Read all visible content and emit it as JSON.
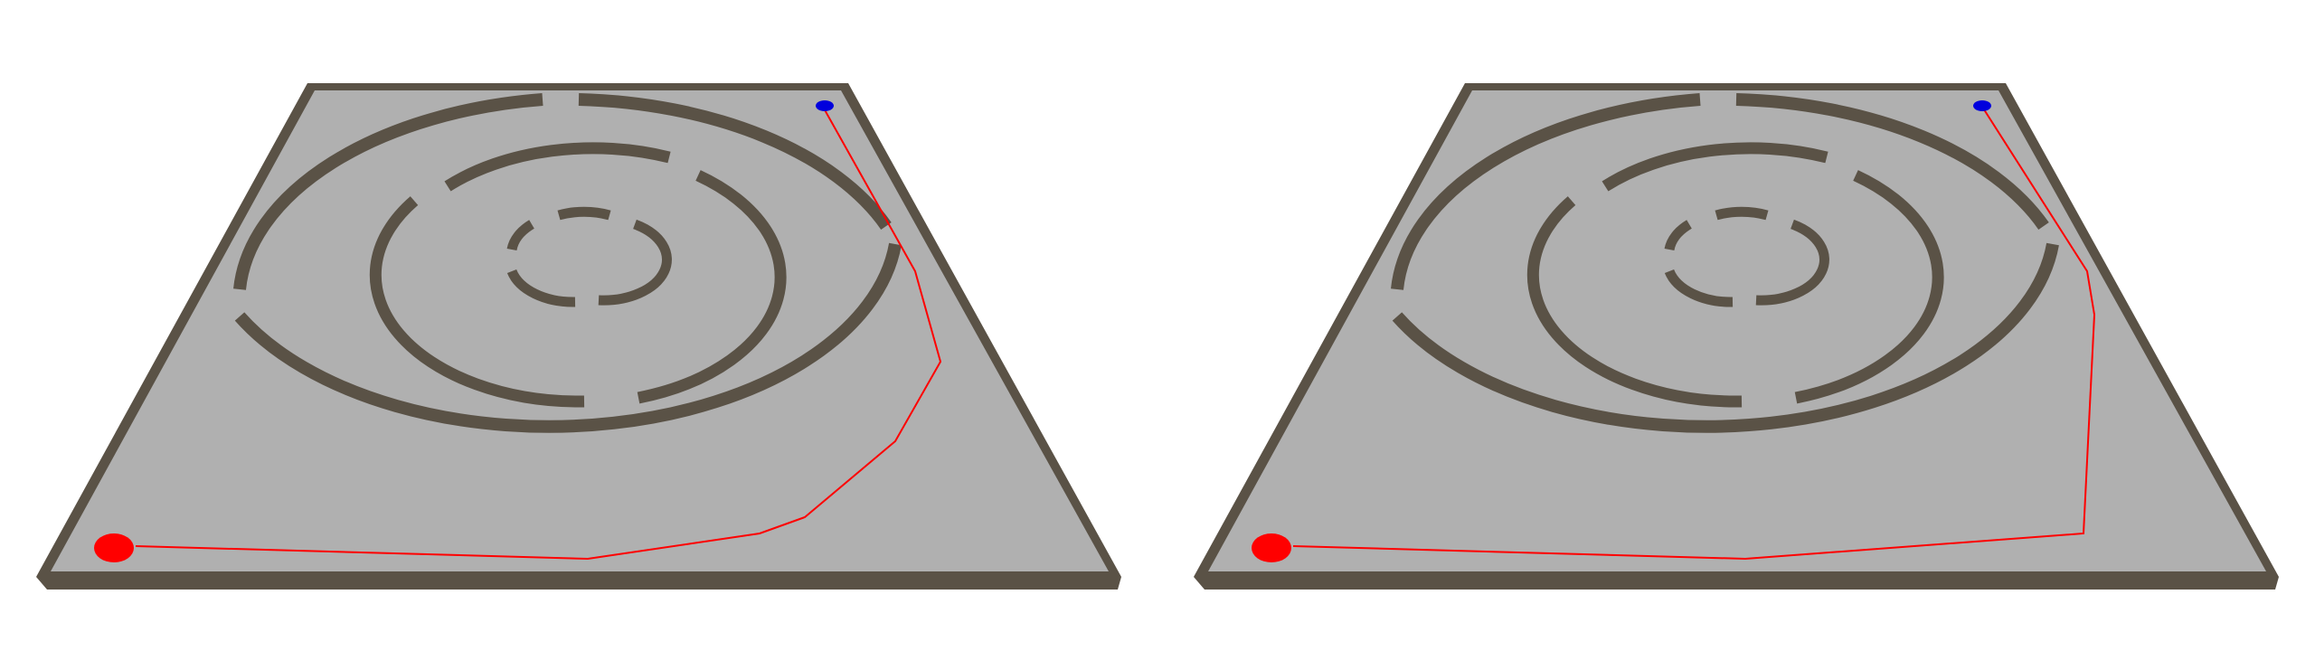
{
  "colors": {
    "background": "#ffffff",
    "floor": "#b0b0b0",
    "wall": "#5a5246",
    "wall_side": "#6e6454",
    "path": "#ff0000",
    "start_marker": "#ff0000",
    "goal_marker": "#0000dd"
  },
  "panels": [
    {
      "id": "left",
      "path_variant": "curved-around-outer-ring"
    },
    {
      "id": "right",
      "path_variant": "straight-segments-around-outer-ring"
    }
  ]
}
